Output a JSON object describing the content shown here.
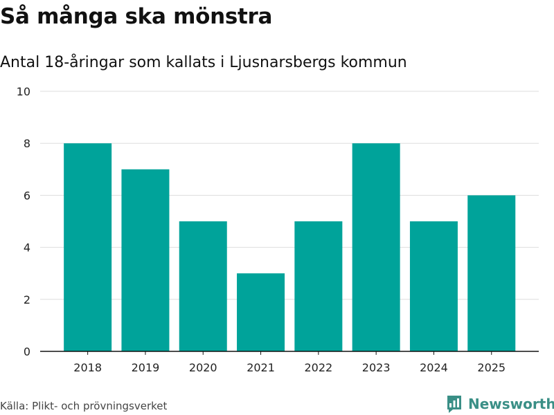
{
  "title": "Så många ska mönstra",
  "subtitle": "Antal 18-åringar som kallats i Ljusnarsbergs kommun",
  "source": "Källa: Plikt- och prövningsverket",
  "logo_text": "Newsworthy",
  "colors": {
    "bar": "#00a39a",
    "grid": "#dddddd",
    "axis": "#111111",
    "logo": "#3a8f86"
  },
  "chart_data": {
    "type": "bar",
    "title": "Så många ska mönstra",
    "subtitle": "Antal 18-åringar som kallats i Ljusnarsbergs kommun",
    "categories": [
      "2018",
      "2019",
      "2020",
      "2021",
      "2022",
      "2023",
      "2024",
      "2025"
    ],
    "values": [
      8,
      7,
      5,
      3,
      5,
      8,
      5,
      6
    ],
    "xlabel": "",
    "ylabel": "",
    "ylim": [
      0,
      10
    ],
    "yticks": [
      0,
      2,
      4,
      6,
      8,
      10
    ],
    "grid": true,
    "legend": "none"
  }
}
